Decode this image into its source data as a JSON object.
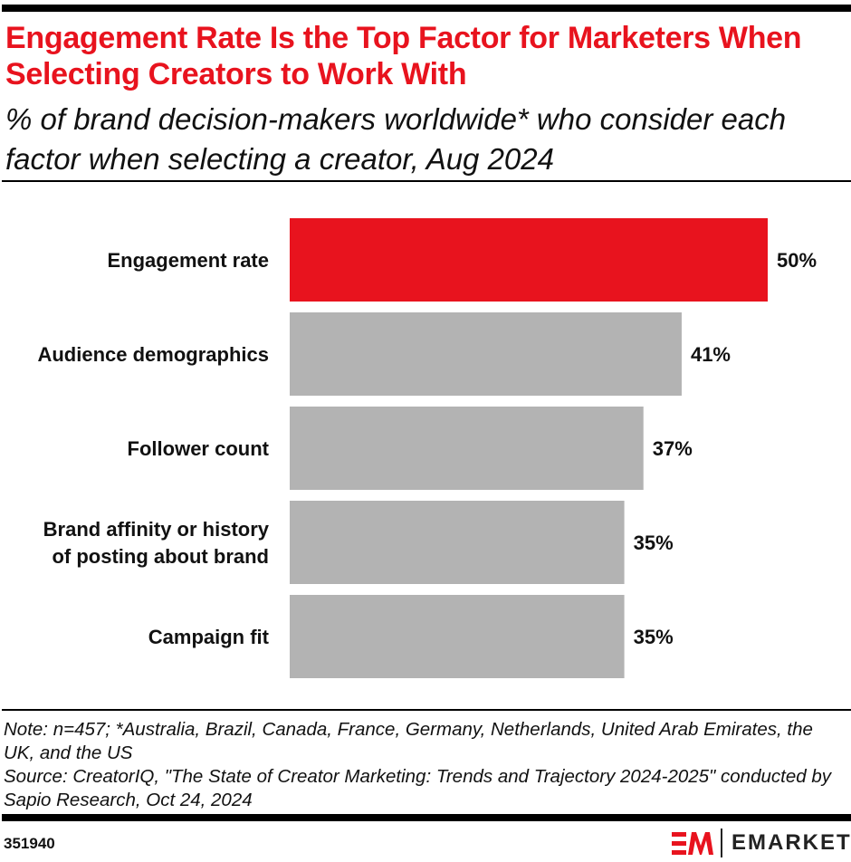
{
  "header": {
    "title": "Engagement Rate Is the Top Factor for Marketers When Selecting Creators to Work With",
    "subtitle": "% of brand decision-makers worldwide* who consider each factor when selecting a creator, Aug 2024"
  },
  "chart_data": {
    "type": "bar",
    "orientation": "horizontal",
    "categories": [
      "Engagement rate",
      "Audience demographics",
      "Follower count",
      "Brand affinity or history of posting about brand",
      "Campaign fit"
    ],
    "category_lines": [
      [
        "Engagement rate"
      ],
      [
        "Audience demographics"
      ],
      [
        "Follower count"
      ],
      [
        "Brand affinity or history",
        "of posting about brand"
      ],
      [
        "Campaign fit"
      ]
    ],
    "values": [
      50,
      41,
      37,
      35,
      35
    ],
    "data_labels": [
      "50%",
      "41%",
      "37%",
      "35%",
      "35%"
    ],
    "colors": [
      "#e8131e",
      "#b3b3b3",
      "#b3b3b3",
      "#b3b3b3",
      "#b3b3b3"
    ],
    "xlim": [
      0,
      50
    ],
    "grid": false
  },
  "footer": {
    "note": "Note: n=457; *Australia, Brazil, Canada, France, Germany, Netherlands, United Arab Emirates, the UK, and the US",
    "source": "Source: CreatorIQ, \"The State of Creator Marketing: Trends and Trajectory 2024-2025\" conducted by Sapio Research, Oct 24, 2024",
    "chart_id": "351940",
    "brand": "EMARKETER"
  },
  "colors": {
    "accent": "#e8131e",
    "bar": "#b3b3b3"
  }
}
